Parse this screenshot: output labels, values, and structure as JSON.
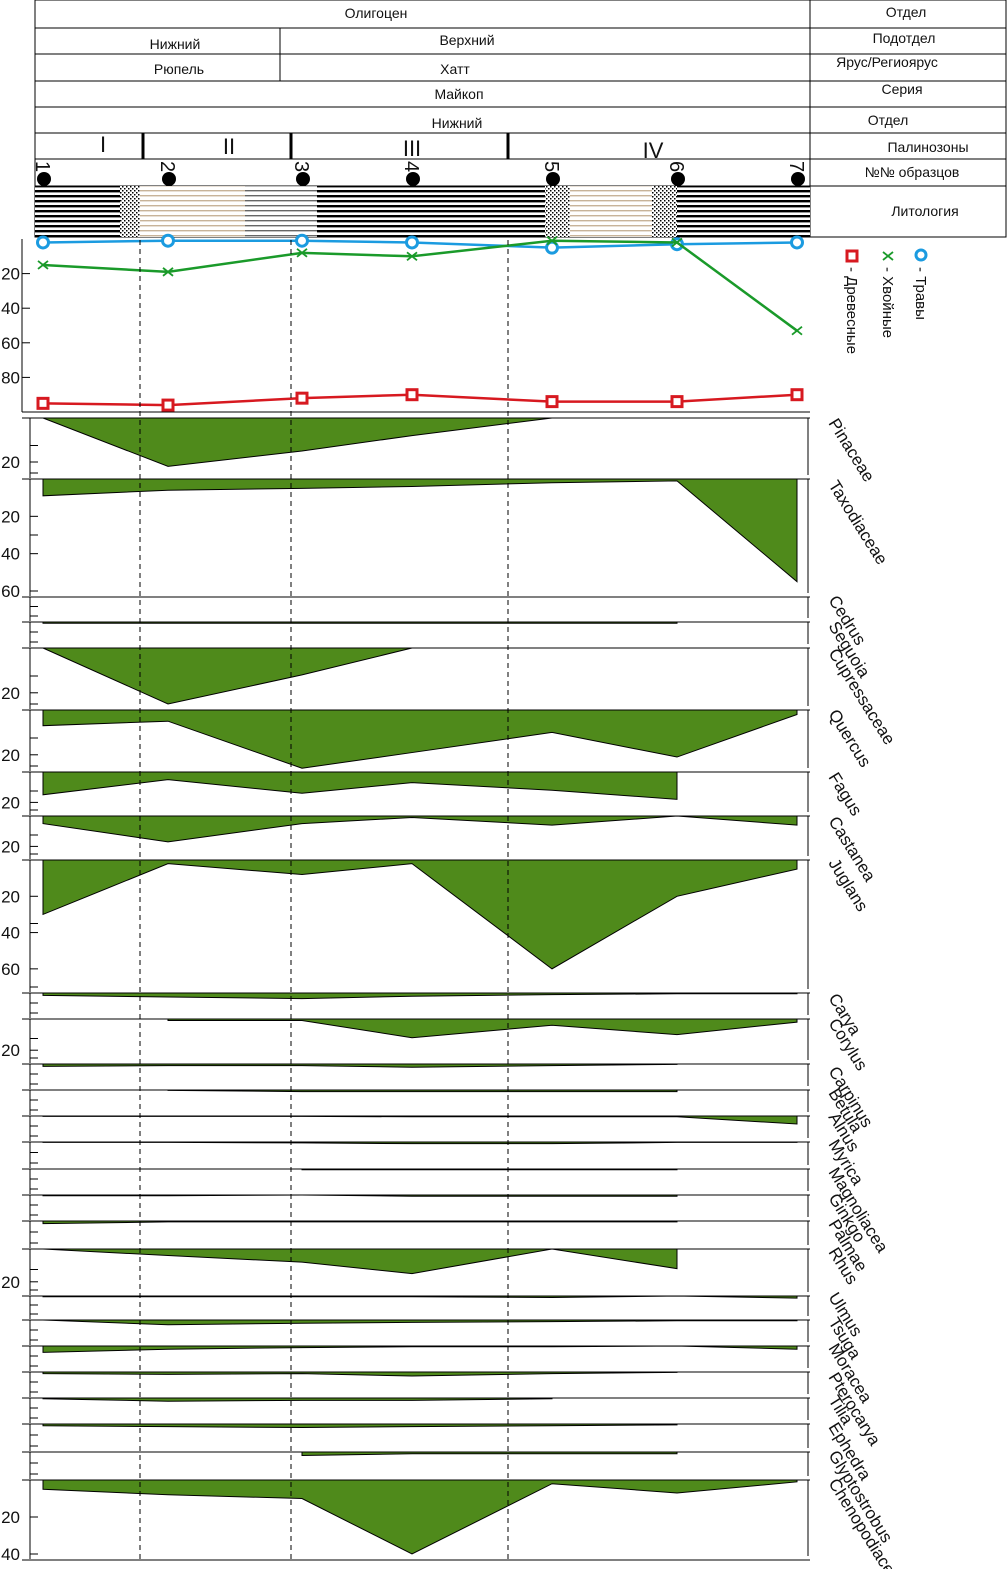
{
  "header": {
    "rows": [
      {
        "cells": [
          "Олигоцен"
        ],
        "label": "Отдел"
      },
      {
        "cells": [
          "Нижний",
          "Верхний"
        ],
        "label": "Подотдел"
      },
      {
        "cells": [
          "Рюпель",
          "Хатт"
        ],
        "label": "Ярус/Региоярус"
      },
      {
        "cells": [
          "Майкоп"
        ],
        "label": "Серия"
      },
      {
        "cells": [
          "Нижний"
        ],
        "label": "Отдел"
      },
      {
        "cells": [
          "I",
          "II",
          "III",
          "IV"
        ],
        "label": "Палинозоны"
      },
      {
        "cells": [],
        "label": "№№ образцов"
      },
      {
        "cells": [],
        "label": "Литология"
      }
    ]
  },
  "samples": [
    "1",
    "2",
    "3",
    "4",
    "5",
    "6",
    "7"
  ],
  "legend": [
    {
      "label": "- Древесные",
      "color": "#d71920",
      "marker": "square"
    },
    {
      "label": "- Хвойные",
      "color": "#1a9a2a",
      "marker": "x"
    },
    {
      "label": "- Травы",
      "color": "#1b9be0",
      "marker": "circle"
    }
  ],
  "chart_data": {
    "type": "area",
    "x": [
      1,
      2,
      3,
      4,
      5,
      6,
      7
    ],
    "summary": {
      "type": "line",
      "ylim": [
        0,
        100
      ],
      "yticks": [
        "20",
        "40",
        "60",
        "80"
      ],
      "series": [
        {
          "name": "- Травы",
          "color": "#1b9be0",
          "values": [
            2,
            1,
            1,
            2,
            5,
            3,
            2
          ]
        },
        {
          "name": "- Хвойные",
          "color": "#1a9a2a",
          "values": [
            15,
            19,
            8,
            10,
            1,
            2,
            53
          ]
        },
        {
          "name": "- Древесные",
          "color": "#d71920",
          "values": [
            95,
            96,
            92,
            90,
            94,
            94,
            90
          ]
        }
      ]
    },
    "fill_color": "#4f8a1b",
    "taxa": [
      {
        "name": "Pinaceae",
        "max": 25,
        "ticks": [
          "20"
        ],
        "values": [
          0,
          22,
          15,
          8,
          0,
          0,
          0
        ]
      },
      {
        "name": "Taxodiaceae",
        "max": 60,
        "ticks": [
          "20",
          "40",
          "60"
        ],
        "values": [
          9,
          6,
          5,
          4,
          2,
          1,
          55
        ]
      },
      {
        "name": "Cedrus",
        "max": 10,
        "ticks": [],
        "values": [
          0,
          0,
          0,
          0,
          0,
          0,
          0
        ]
      },
      {
        "name": "Seguoia",
        "max": 10,
        "ticks": [],
        "values": [
          0.6,
          0.6,
          0.6,
          0.6,
          0.6,
          0.6,
          null
        ]
      },
      {
        "name": "Cupressaceae",
        "max": 25,
        "ticks": [
          "20"
        ],
        "values": [
          0,
          25,
          12,
          0,
          0,
          0,
          0
        ]
      },
      {
        "name": "Quercus",
        "max": 25,
        "ticks": [
          "20"
        ],
        "values": [
          7,
          5,
          26,
          19,
          10,
          21,
          2
        ]
      },
      {
        "name": "Fagus",
        "max": 25,
        "ticks": [
          "20"
        ],
        "values": [
          15,
          5,
          14,
          7,
          12,
          18,
          null
        ]
      },
      {
        "name": "Castanea",
        "max": 25,
        "ticks": [
          "20"
        ],
        "values": [
          5,
          17,
          5,
          1,
          6,
          0,
          6
        ]
      },
      {
        "name": "Juglans",
        "max": 70,
        "ticks": [
          "20",
          "40",
          "60"
        ],
        "values": [
          30,
          2,
          8,
          2,
          60,
          20,
          5
        ]
      },
      {
        "name": "Carya",
        "max": 25,
        "ticks": [],
        "values": [
          3,
          5,
          7,
          4,
          2,
          1,
          1
        ]
      },
      {
        "name": "Corylus",
        "max": 25,
        "ticks": [
          "20"
        ],
        "values": [
          null,
          1,
          1,
          12,
          4,
          10,
          2
        ]
      },
      {
        "name": "Carpinus",
        "max": 25,
        "ticks": [],
        "values": [
          3,
          2,
          2,
          4,
          2,
          0.5,
          null
        ]
      },
      {
        "name": "Betula",
        "max": 25,
        "ticks": [],
        "values": [
          null,
          0.5,
          2,
          2,
          2,
          2,
          null
        ]
      },
      {
        "name": "Alnus",
        "max": 25,
        "ticks": [],
        "values": [
          0.5,
          0.5,
          0.5,
          1,
          1,
          1,
          10
        ]
      },
      {
        "name": "Myrica",
        "max": 25,
        "ticks": [],
        "values": [
          0.5,
          0.5,
          1,
          2,
          2,
          0.5,
          0.5
        ]
      },
      {
        "name": "Magnoliacea",
        "max": 25,
        "ticks": [],
        "values": [
          null,
          null,
          1,
          1,
          1,
          1,
          null
        ]
      },
      {
        "name": "Ginkgo",
        "max": 25,
        "ticks": [],
        "values": [
          1,
          1,
          0,
          1.5,
          1.5,
          1.5,
          null
        ]
      },
      {
        "name": "Palmae",
        "max": 25,
        "ticks": [],
        "values": [
          3,
          1,
          1,
          1,
          1,
          1,
          null
        ]
      },
      {
        "name": "Rhus",
        "max": 25,
        "ticks": [
          "20"
        ],
        "values": [
          0,
          4,
          8,
          15,
          0,
          12,
          null
        ]
      },
      {
        "name": "Ulmus",
        "max": 25,
        "ticks": [],
        "values": [
          1,
          1,
          1,
          1,
          2,
          0,
          3
        ]
      },
      {
        "name": "Tsuga",
        "max": 25,
        "ticks": [],
        "values": [
          0,
          6,
          4,
          3,
          2,
          1,
          1
        ]
      },
      {
        "name": "Moracea",
        "max": 25,
        "ticks": [],
        "values": [
          8,
          4,
          2,
          1,
          1,
          0,
          4
        ]
      },
      {
        "name": "Pterocarya",
        "max": 25,
        "ticks": [],
        "values": [
          2,
          3,
          2,
          5,
          2,
          0.5,
          null
        ]
      },
      {
        "name": "Tilia",
        "max": 25,
        "ticks": [],
        "values": [
          1,
          4,
          3,
          3,
          1,
          null,
          null
        ]
      },
      {
        "name": "Ephedra",
        "max": 25,
        "ticks": [],
        "values": [
          2,
          3,
          4,
          3,
          2,
          1,
          null
        ]
      },
      {
        "name": "Glyptostrobus",
        "max": 25,
        "ticks": [],
        "values": [
          null,
          null,
          4,
          2,
          2,
          2,
          null
        ]
      },
      {
        "name": "Chenopodiaceae",
        "max": 40,
        "ticks": [
          "20",
          "40"
        ],
        "values": [
          5,
          8,
          10,
          40,
          2,
          7,
          1
        ]
      }
    ]
  }
}
